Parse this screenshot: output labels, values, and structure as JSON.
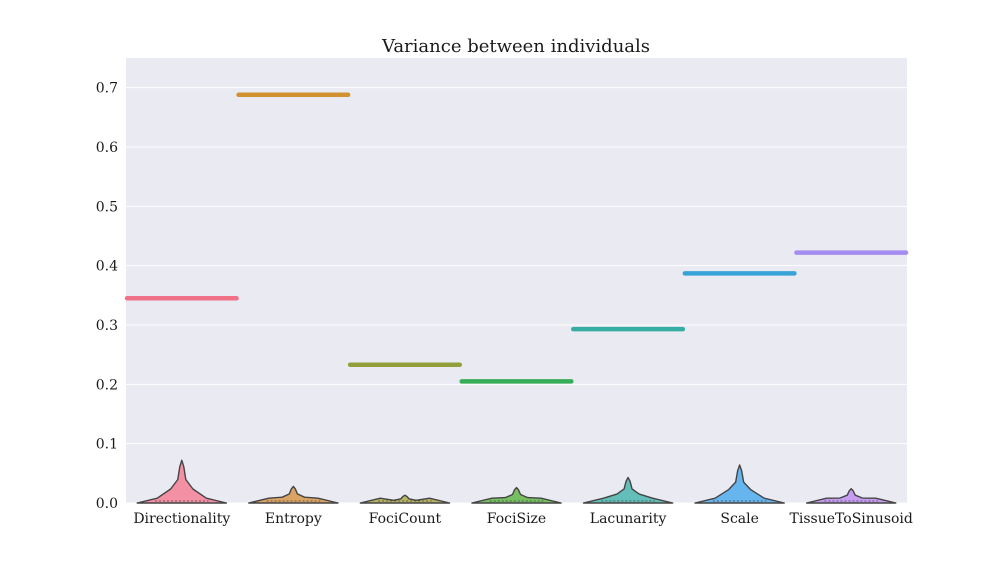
{
  "chart_data": {
    "type": "violin",
    "title": "Variance between individuals",
    "xlabel": "",
    "ylabel": "",
    "ylim": [
      0,
      0.75
    ],
    "yticks": [
      "0.0",
      "0.1",
      "0.2",
      "0.3",
      "0.4",
      "0.5",
      "0.6",
      "0.7"
    ],
    "grid": true,
    "categories": [
      "Directionality",
      "Entropy",
      "FociCount",
      "FociSize",
      "Lacunarity",
      "Scale",
      "TissueToSinusoid"
    ],
    "between_variance": [
      0.345,
      0.688,
      0.233,
      0.205,
      0.293,
      0.387,
      0.422
    ],
    "violin_max": [
      0.072,
      0.028,
      0.013,
      0.026,
      0.043,
      0.064,
      0.024
    ],
    "colors": [
      "#f77189",
      "#d58c32",
      "#a4a031",
      "#50b131",
      "#36ada4",
      "#3ba3ec",
      "#bb83f4"
    ],
    "line_colors": [
      "#f07088",
      "#d0912e",
      "#93a03a",
      "#37ad58",
      "#36ada4",
      "#38a3d6",
      "#a58cf0"
    ]
  }
}
